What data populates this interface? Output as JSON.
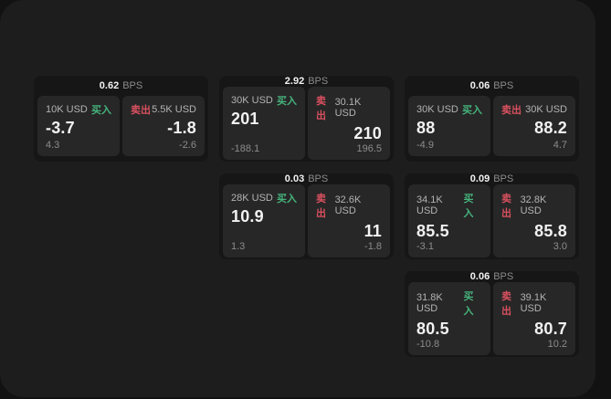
{
  "colors": {
    "page_bg": "#121212",
    "window_bg": "#1d1d1d",
    "card_bg": "#161616",
    "panel_bg": "#272727",
    "buy_green": "#46b37c",
    "sell_red": "#d8505f",
    "text_primary": "#f2f2f2",
    "text_label": "#b3b3b3",
    "text_muted": "#8c8c8c"
  },
  "labels": {
    "bps": "BPS",
    "buy": "买入",
    "sell": "卖出"
  },
  "cards": [
    {
      "row": 1,
      "col": 1,
      "bps": "0.62",
      "buy": {
        "amount": "10K USD",
        "value": "-3.7",
        "delta": "4.3"
      },
      "sell": {
        "amount": "5.5K USD",
        "value": "-1.8",
        "delta": "-2.6"
      }
    },
    {
      "row": 1,
      "col": 2,
      "bps": "2.92",
      "buy": {
        "amount": "30K USD",
        "value": "201",
        "delta": "-188.1"
      },
      "sell": {
        "amount": "30.1K USD",
        "value": "210",
        "delta": "196.5"
      }
    },
    {
      "row": 1,
      "col": 3,
      "bps": "0.06",
      "buy": {
        "amount": "30K USD",
        "value": "88",
        "delta": "-4.9"
      },
      "sell": {
        "amount": "30K USD",
        "value": "88.2",
        "delta": "4.7"
      }
    },
    {
      "row": 2,
      "col": 2,
      "bps": "0.03",
      "buy": {
        "amount": "28K USD",
        "value": "10.9",
        "delta": "1.3"
      },
      "sell": {
        "amount": "32.6K USD",
        "value": "11",
        "delta": "-1.8"
      }
    },
    {
      "row": 2,
      "col": 3,
      "bps": "0.09",
      "buy": {
        "amount": "34.1K USD",
        "value": "85.5",
        "delta": "-3.1"
      },
      "sell": {
        "amount": "32.8K USD",
        "value": "85.8",
        "delta": "3.0"
      }
    },
    {
      "row": 3,
      "col": 3,
      "bps": "0.06",
      "buy": {
        "amount": "31.8K USD",
        "value": "80.5",
        "delta": "-10.8"
      },
      "sell": {
        "amount": "39.1K USD",
        "value": "80.7",
        "delta": "10.2"
      }
    }
  ]
}
